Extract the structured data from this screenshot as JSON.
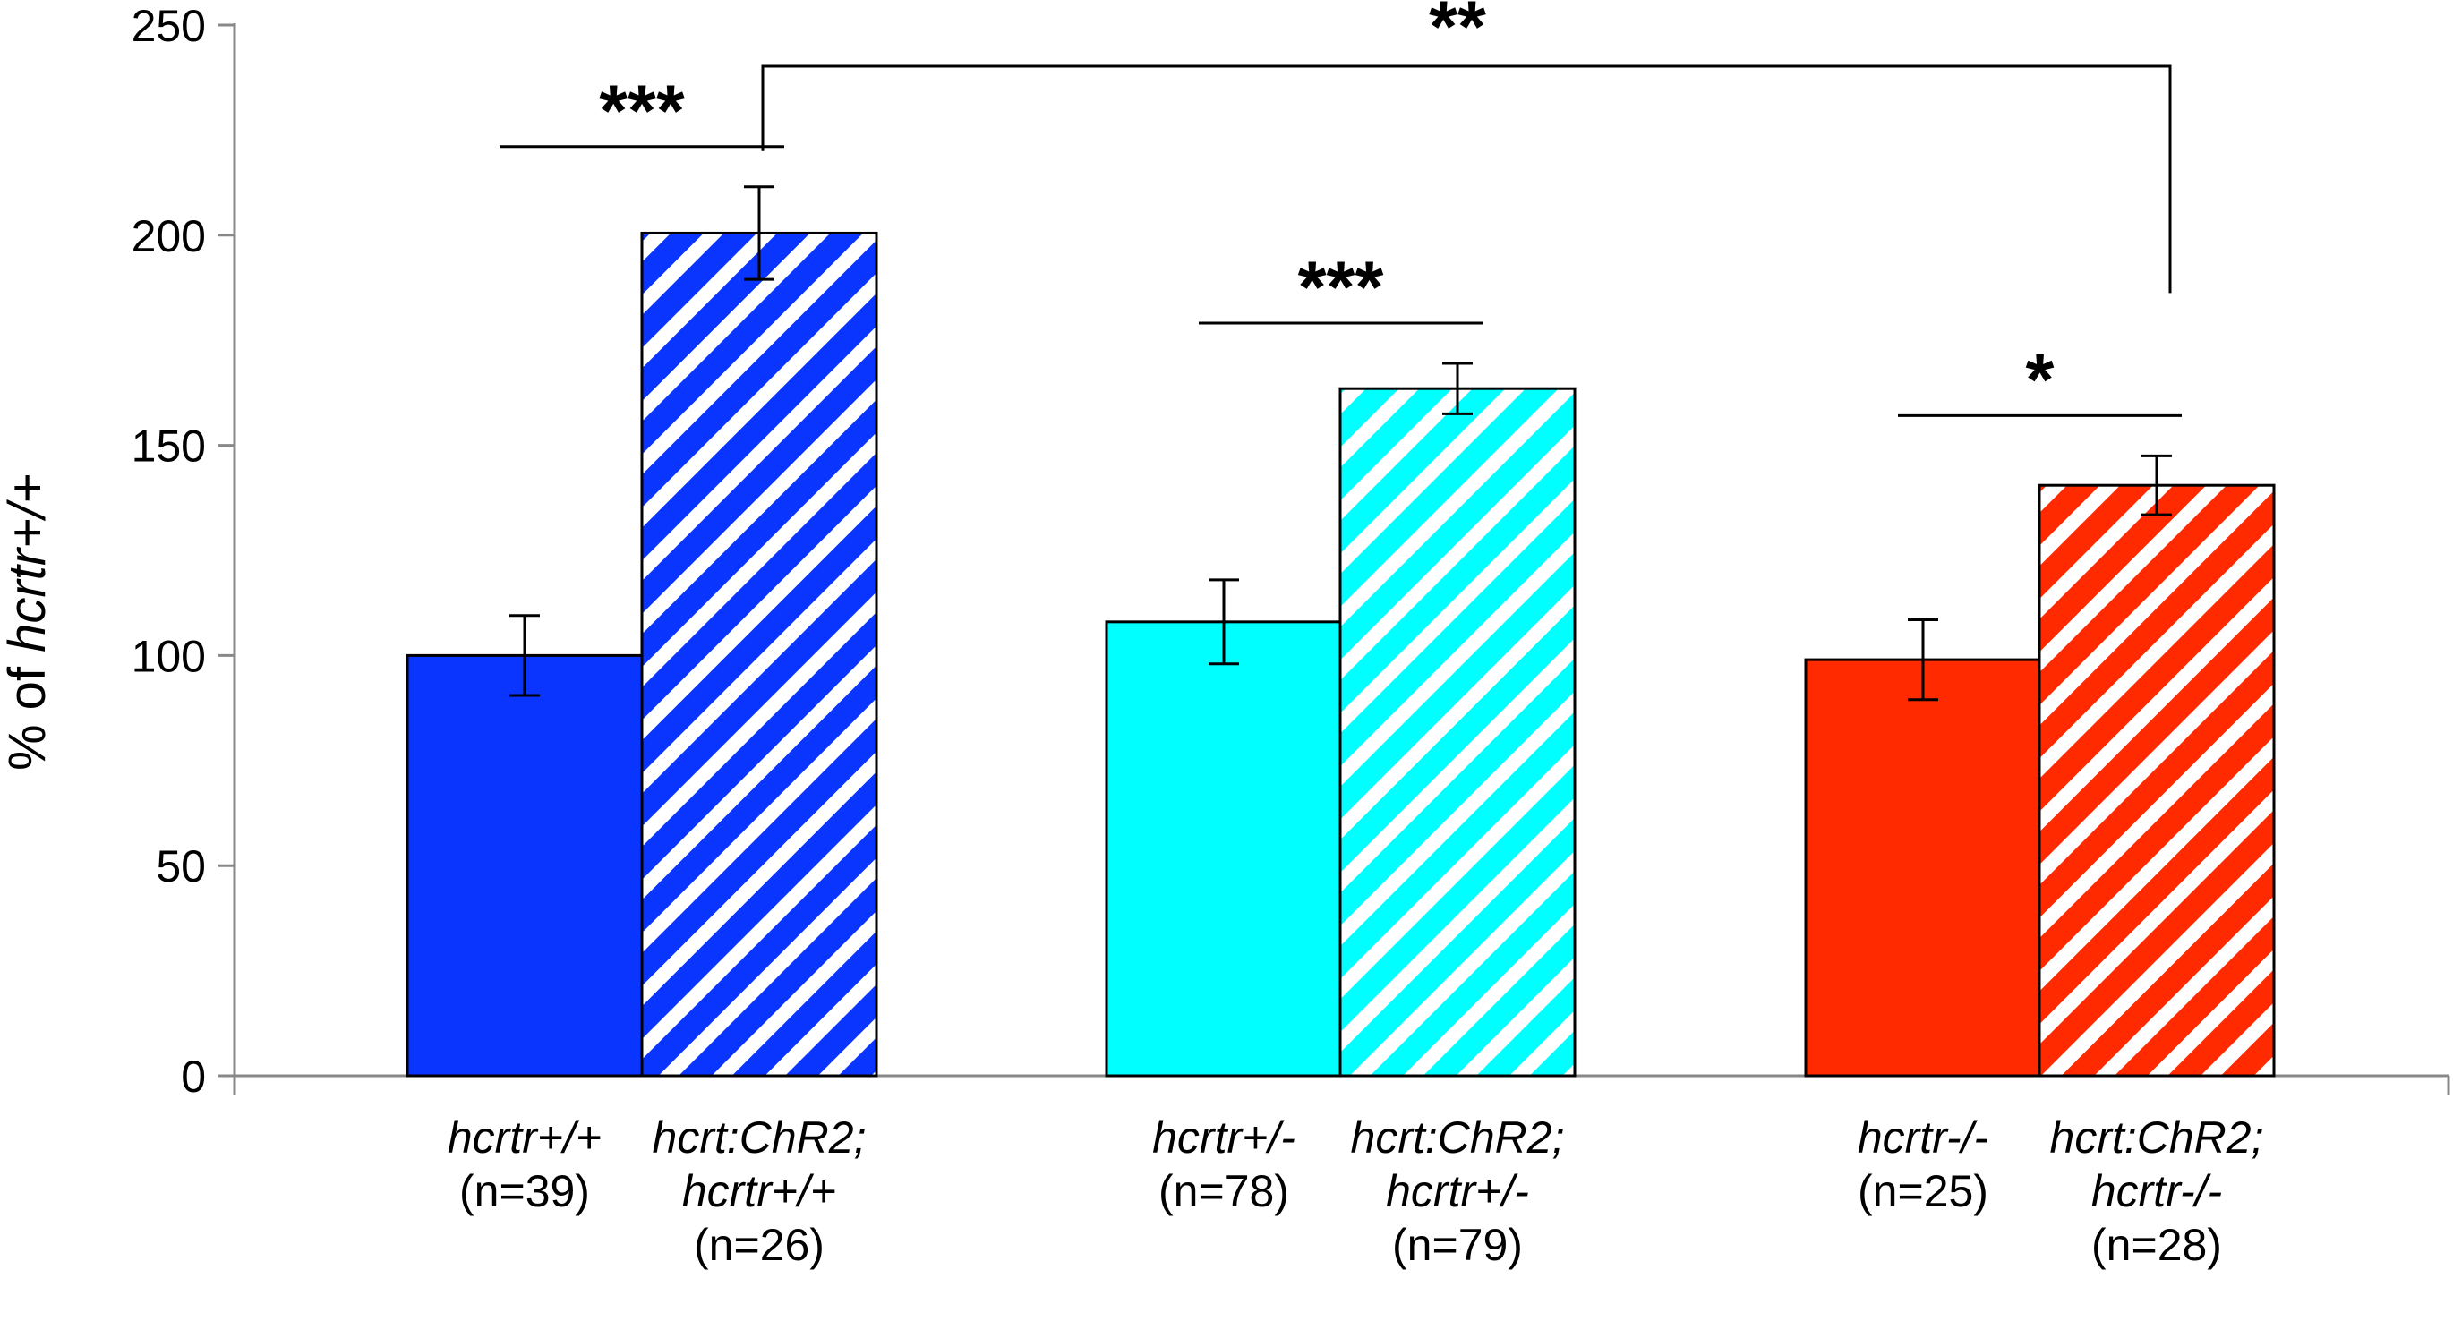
{
  "chart_data": {
    "type": "bar",
    "ylabel_prefix": "% of ",
    "ylabel_italic": "hcrtr+/+",
    "ylim": [
      0,
      250
    ],
    "yticks": [
      "0",
      "50",
      "100",
      "150",
      "200",
      "250"
    ],
    "bars": [
      {
        "value": 100,
        "error": 9.5,
        "color": "#0a35ff",
        "hatched": false,
        "label_italic": [
          "hcrtr+/+"
        ],
        "label_n": "(n=39)"
      },
      {
        "value": 200.5,
        "error": 11,
        "color": "#0a35ff",
        "hatched": true,
        "label_italic": [
          "hcrt:ChR2;",
          "hcrtr+/+"
        ],
        "label_n": "(n=26)"
      },
      {
        "value": 108,
        "error": 10,
        "color": "#00ffff",
        "hatched": false,
        "label_italic": [
          "hcrtr+/-"
        ],
        "label_n": "(n=78)"
      },
      {
        "value": 163.5,
        "error": 6,
        "color": "#00ffff",
        "hatched": true,
        "label_italic": [
          "hcrt:ChR2;",
          "hcrtr+/-"
        ],
        "label_n": "(n=79)"
      },
      {
        "value": 99,
        "error": 9.5,
        "color": "#ff2a00",
        "hatched": false,
        "label_italic": [
          "hcrtr-/-"
        ],
        "label_n": "(n=25)"
      },
      {
        "value": 140.5,
        "error": 7,
        "color": "#ff2a00",
        "hatched": true,
        "label_italic": [
          "hcrt:ChR2;",
          "hcrtr-/-"
        ],
        "label_n": "(n=28)"
      }
    ],
    "significance": [
      {
        "label": "***",
        "from": 0,
        "to": 1,
        "style": "line"
      },
      {
        "label": "***",
        "from": 2,
        "to": 3,
        "style": "line"
      },
      {
        "label": "*",
        "from": 4,
        "to": 5,
        "style": "line"
      },
      {
        "label": "**",
        "from": 1,
        "to": 5,
        "style": "bracket"
      }
    ]
  }
}
